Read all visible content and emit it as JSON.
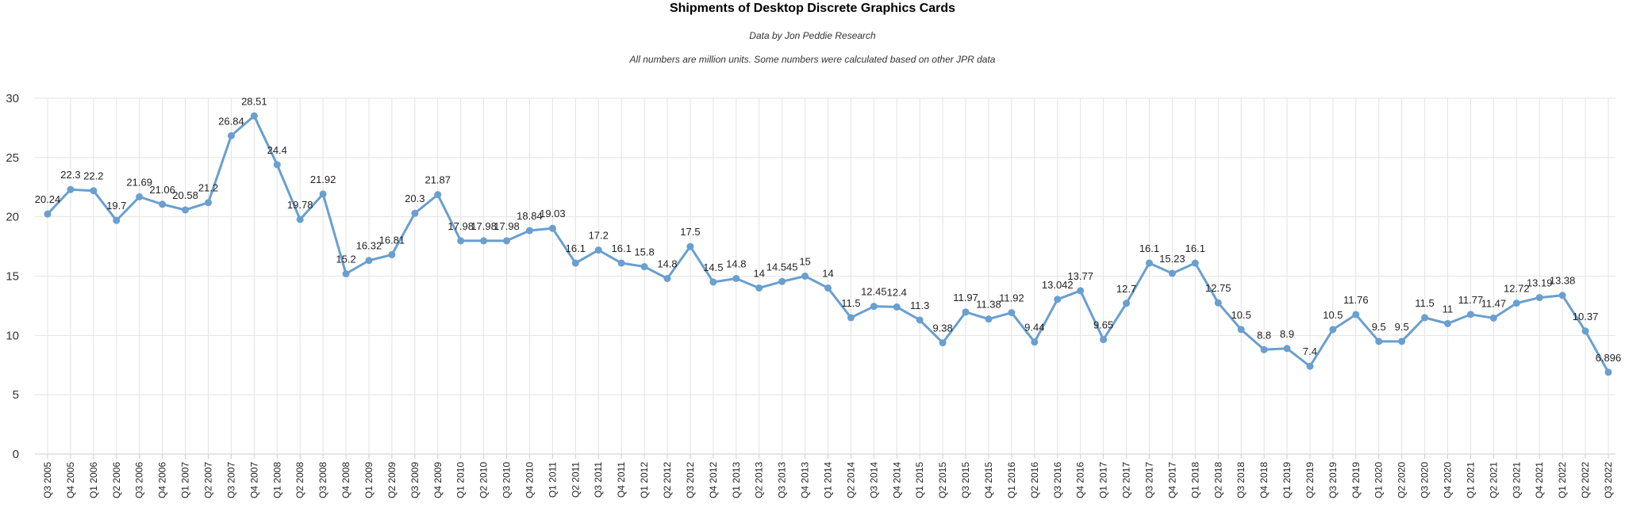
{
  "title": "Shipments of Desktop Discrete Graphics Cards",
  "subtitle": "Data by Jon Peddie Research",
  "note": "All numbers are million units. Some numbers were calculated based on other JPR data",
  "colors": {
    "line": "#6a9fcf",
    "grid": "#e3e3e3",
    "axis": "#cccccc"
  },
  "chart_data": {
    "type": "line",
    "title": "Shipments of Desktop Discrete Graphics Cards",
    "xlabel": "",
    "ylabel": "",
    "ylim": [
      0,
      30
    ],
    "yticks": [
      0,
      5,
      10,
      15,
      20,
      25,
      30
    ],
    "grid": true,
    "categories": [
      "Q3 2005",
      "Q4 2005",
      "Q1 2006",
      "Q2 2006",
      "Q3 2006",
      "Q4 2006",
      "Q1 2007",
      "Q2 2007",
      "Q3 2007",
      "Q4 2007",
      "Q1 2008",
      "Q2 2008",
      "Q3 2008",
      "Q4 2008",
      "Q1 2009",
      "Q2 2009",
      "Q3 2009",
      "Q4 2009",
      "Q1 2010",
      "Q2 2010",
      "Q3 2010",
      "Q4 2010",
      "Q1 2011",
      "Q2 2011",
      "Q3 2011",
      "Q4 2011",
      "Q1 2012",
      "Q2 2012",
      "Q3 2012",
      "Q4 2012",
      "Q1 2013",
      "Q2 2013",
      "Q3 2013",
      "Q4 2013",
      "Q1 2014",
      "Q2 2014",
      "Q3 2014",
      "Q4 2014",
      "Q1 2015",
      "Q2 2015",
      "Q3 2015",
      "Q4 2015",
      "Q1 2016",
      "Q2 2016",
      "Q3 2016",
      "Q4 2016",
      "Q1 2017",
      "Q2 2017",
      "Q3 2017",
      "Q4 2017",
      "Q1 2018",
      "Q2 2018",
      "Q3 2018",
      "Q4 2018",
      "Q1 2019",
      "Q2 2019",
      "Q3 2019",
      "Q4 2019",
      "Q1 2020",
      "Q2 2020",
      "Q3 2020",
      "Q4 2020",
      "Q1 2021",
      "Q2 2021",
      "Q3 2021",
      "Q4 2021",
      "Q1 2022",
      "Q2 2022",
      "Q3 2022"
    ],
    "values": [
      20.24,
      22.3,
      22.2,
      19.7,
      21.69,
      21.06,
      20.58,
      21.2,
      26.84,
      28.51,
      24.4,
      19.78,
      21.92,
      15.2,
      16.32,
      16.81,
      20.3,
      21.87,
      17.98,
      17.98,
      17.98,
      18.84,
      19.03,
      16.1,
      17.2,
      16.1,
      15.8,
      14.8,
      17.5,
      14.5,
      14.8,
      14,
      14.545,
      15,
      14,
      11.5,
      12.45,
      12.4,
      11.3,
      9.38,
      11.97,
      11.38,
      11.92,
      9.44,
      13.042,
      13.77,
      9.65,
      12.7,
      16.1,
      15.23,
      16.1,
      12.75,
      10.5,
      8.8,
      8.9,
      7.4,
      10.5,
      11.76,
      9.5,
      9.5,
      11.5,
      11,
      11.77,
      11.47,
      12.72,
      13.19,
      13.38,
      10.37,
      6.896
    ],
    "data_labels": [
      "20.24",
      "22.3",
      "22.2",
      "19.7",
      "21.69",
      "21.06",
      "20.58",
      "21.2",
      "26.84",
      "28.51",
      "24.4",
      "19.78",
      "21.92",
      "15.2",
      "16.32",
      "16.81",
      "20.3",
      "21.87",
      "17.98",
      "17.98",
      "17.98",
      "18.84",
      "19.03",
      "16.1",
      "17.2",
      "16.1",
      "15.8",
      "14.8",
      "17.5",
      "14.5",
      "14.8",
      "14",
      "14.545",
      "15",
      "14",
      "11.5",
      "12.45",
      "12.4",
      "11.3",
      "9.38",
      "11.97",
      "11.38",
      "11.92",
      "9.44",
      "13.042",
      "13.77",
      "9.65",
      "12.7",
      "16.1",
      "15.23",
      "16.1",
      "12.75",
      "10.5",
      "8.8",
      "8.9",
      "7.4",
      "10.5",
      "11.76",
      "9.5",
      "9.5",
      "11.5",
      "11",
      "11.77",
      "11.47",
      "12.72",
      "13.19",
      "13.38",
      "10.37",
      "6.896"
    ]
  }
}
